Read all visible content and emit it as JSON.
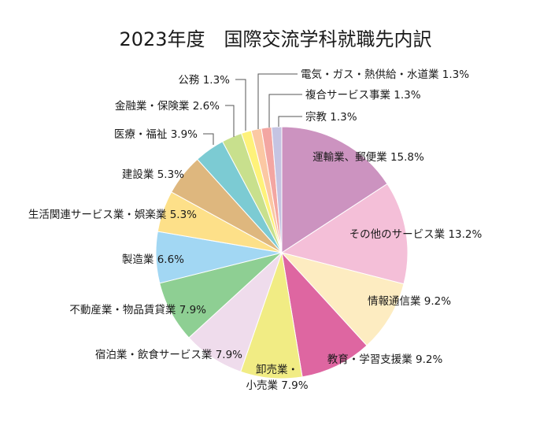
{
  "chart_data": {
    "type": "pie",
    "title": "2023年度　国際交流学科就職先内訳",
    "unit": "%",
    "slices": [
      {
        "name": "運輸業、郵便業",
        "value": 15.8,
        "label": "運輸業、郵便業 15.8%",
        "color": "#cc93c0"
      },
      {
        "name": "その他のサービス業",
        "value": 13.2,
        "label": "その他のサービス業 13.2%",
        "color": "#f4bfd8"
      },
      {
        "name": "情報通信業",
        "value": 9.2,
        "label": "情報通信業 9.2%",
        "color": "#fdecc1"
      },
      {
        "name": "教育・学習支援業",
        "value": 9.2,
        "label": "教育・学習支援業 9.2%",
        "color": "#de66a1"
      },
      {
        "name": "卸売業・小売業",
        "value": 7.9,
        "label": [
          "卸売業・",
          "小売業 7.9%"
        ],
        "color": "#f1ec84"
      },
      {
        "name": "宿泊業・飲食サービス業",
        "value": 7.9,
        "label": "宿泊業・飲食サービス業 7.9%",
        "color": "#efdcec"
      },
      {
        "name": "不動産業・物品賃貸業",
        "value": 7.9,
        "label": "不動産業・物品賃貸業 7.9%",
        "color": "#8ecf93"
      },
      {
        "name": "製造業",
        "value": 6.6,
        "label": "製造業 6.6%",
        "color": "#a2d7f3"
      },
      {
        "name": "生活関連サービス業・娯楽業",
        "value": 5.3,
        "label": "生活関連サービス業・娯楽業 5.3%",
        "color": "#fde089"
      },
      {
        "name": "建設業",
        "value": 5.3,
        "label": "建設業 5.3%",
        "color": "#deb77e"
      },
      {
        "name": "医療・福祉",
        "value": 3.9,
        "label": "医療・福祉 3.9%",
        "color": "#7ccbd3"
      },
      {
        "name": "金融業・保険業",
        "value": 2.6,
        "label": "金融業・保険業 2.6%",
        "color": "#c8e08d"
      },
      {
        "name": "公務",
        "value": 1.3,
        "label": "公務 1.3%",
        "color": "#fef27a"
      },
      {
        "name": "電気・ガス・熱供給・水道業",
        "value": 1.3,
        "label": "電気・ガス・熱供給・水道業 1.3%",
        "color": "#fbc8a3"
      },
      {
        "name": "複合サービス事業",
        "value": 1.3,
        "label": "複合サービス事業 1.3%",
        "color": "#f3a6a2"
      },
      {
        "name": "宗教",
        "value": 1.3,
        "label": "宗教 1.3%",
        "color": "#c5c4e2"
      }
    ]
  }
}
